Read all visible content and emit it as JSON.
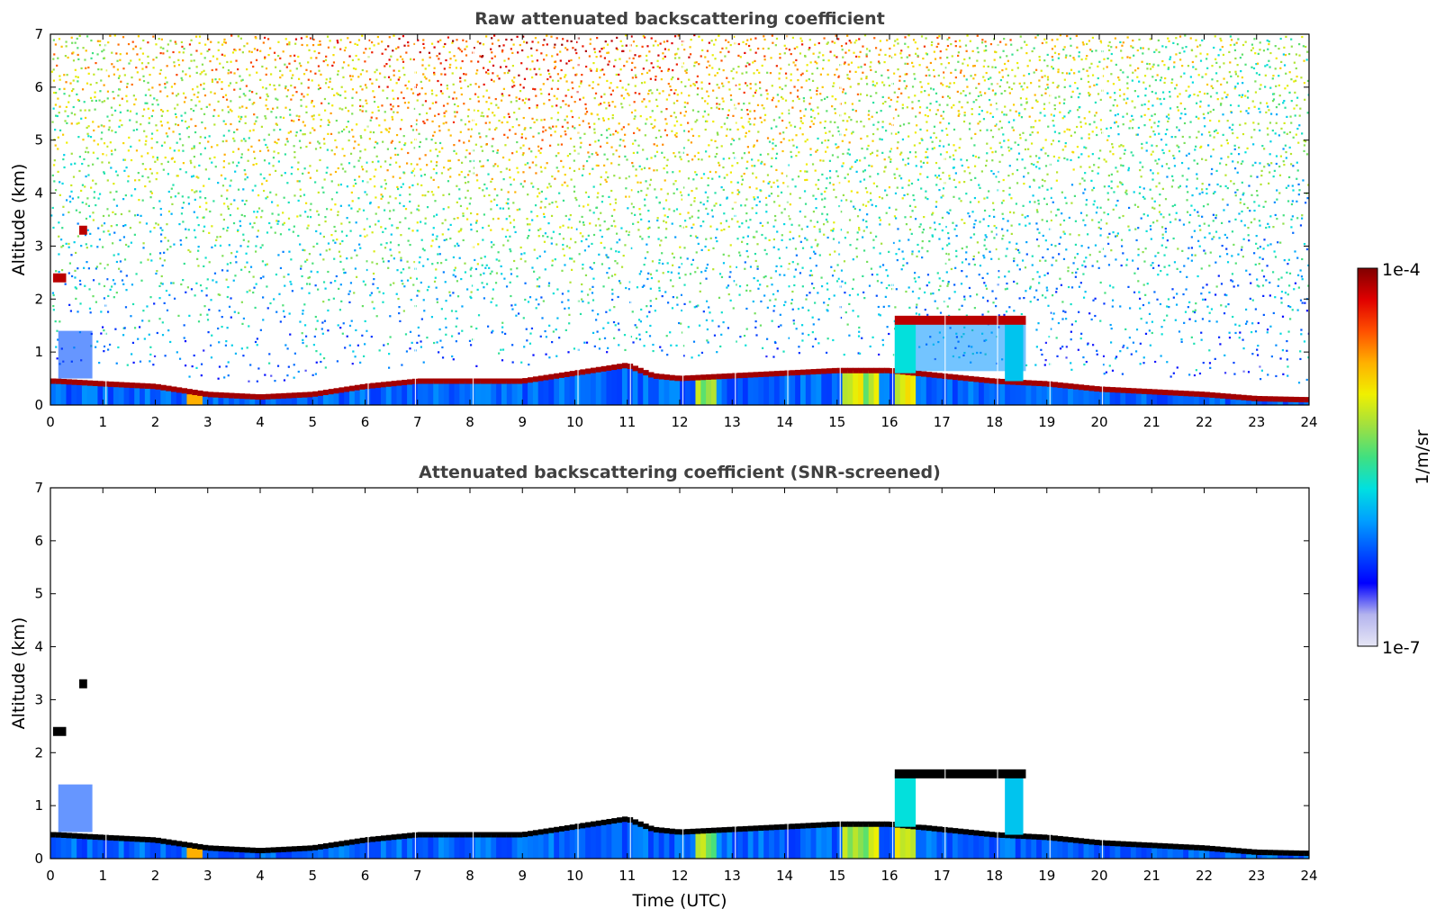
{
  "colors": {
    "colormap": [
      "#e6e6f5",
      "#b4b4ee",
      "#0000ff",
      "#0050ff",
      "#00a0ff",
      "#00e0e0",
      "#40e080",
      "#a0e040",
      "#f0f000",
      "#ffb000",
      "#ff5000",
      "#e00000",
      "#800000"
    ],
    "frame": "#000000",
    "title_text": "#404040",
    "cloud_core": "#000000"
  },
  "chart_data": [
    {
      "type": "heatmap",
      "title": "Raw attenuated backscattering coefficient",
      "xlabel": "",
      "ylabel": "Altitude (km)",
      "xlim": [
        0,
        24
      ],
      "ylim": [
        0,
        7
      ],
      "x_ticks": [
        "0",
        "1",
        "2",
        "3",
        "4",
        "5",
        "6",
        "7",
        "8",
        "9",
        "10",
        "11",
        "12",
        "13",
        "14",
        "15",
        "16",
        "17",
        "18",
        "19",
        "20",
        "21",
        "22",
        "23",
        "24"
      ],
      "y_ticks": [
        "0",
        "1",
        "2",
        "3",
        "4",
        "5",
        "6",
        "7"
      ],
      "boundary_layer_top_km": [
        [
          0.1,
          0.45
        ],
        [
          1,
          0.4
        ],
        [
          2,
          0.35
        ],
        [
          3,
          0.2
        ],
        [
          4,
          0.15
        ],
        [
          5,
          0.2
        ],
        [
          6,
          0.35
        ],
        [
          7,
          0.45
        ],
        [
          8,
          0.45
        ],
        [
          9,
          0.45
        ],
        [
          10,
          0.6
        ],
        [
          11,
          0.75
        ],
        [
          11.5,
          0.55
        ],
        [
          12,
          0.5
        ],
        [
          13,
          0.55
        ],
        [
          14,
          0.6
        ],
        [
          15,
          0.65
        ],
        [
          16,
          0.65
        ],
        [
          18,
          0.45
        ],
        [
          19,
          0.4
        ],
        [
          20,
          0.3
        ],
        [
          21,
          0.25
        ],
        [
          22,
          0.2
        ],
        [
          23,
          0.12
        ],
        [
          23.9,
          0.1
        ]
      ],
      "cloud_layers": [
        {
          "x_start": 16.1,
          "x_end": 18.6,
          "altitude_km": 1.6
        },
        {
          "x_start": 0.05,
          "x_end": 0.3,
          "altitude_km": 2.4
        },
        {
          "x_start": 0.55,
          "x_end": 0.7,
          "altitude_km": 3.3
        }
      ],
      "noise_signal": "increases with altitude; strongest 6-7 km between 4 and 14 UTC",
      "grid": false
    },
    {
      "type": "heatmap",
      "title": "Attenuated backscattering coefficient (SNR-screened)",
      "xlabel": "Time (UTC)",
      "ylabel": "Altitude (km)",
      "xlim": [
        0,
        24
      ],
      "ylim": [
        0,
        7
      ],
      "x_ticks": [
        "0",
        "1",
        "2",
        "3",
        "4",
        "5",
        "6",
        "7",
        "8",
        "9",
        "10",
        "11",
        "12",
        "13",
        "14",
        "15",
        "16",
        "17",
        "18",
        "19",
        "20",
        "21",
        "22",
        "23",
        "24"
      ],
      "y_ticks": [
        "0",
        "1",
        "2",
        "3",
        "4",
        "5",
        "6",
        "7"
      ],
      "boundary_layer_top_km": [
        [
          0.1,
          0.45
        ],
        [
          1,
          0.4
        ],
        [
          2,
          0.35
        ],
        [
          3,
          0.2
        ],
        [
          4,
          0.15
        ],
        [
          5,
          0.2
        ],
        [
          6,
          0.35
        ],
        [
          7,
          0.45
        ],
        [
          8,
          0.45
        ],
        [
          9,
          0.45
        ],
        [
          10,
          0.6
        ],
        [
          11,
          0.75
        ],
        [
          11.5,
          0.55
        ],
        [
          12,
          0.5
        ],
        [
          13,
          0.55
        ],
        [
          14,
          0.6
        ],
        [
          15,
          0.65
        ],
        [
          16,
          0.65
        ],
        [
          18,
          0.45
        ],
        [
          19,
          0.4
        ],
        [
          20,
          0.3
        ],
        [
          21,
          0.25
        ],
        [
          22,
          0.2
        ],
        [
          23,
          0.12
        ],
        [
          23.9,
          0.1
        ]
      ],
      "cloud_layers": [
        {
          "x_start": 16.1,
          "x_end": 18.6,
          "altitude_km": 1.6
        },
        {
          "x_start": 0.05,
          "x_end": 0.3,
          "altitude_km": 2.4
        },
        {
          "x_start": 0.55,
          "x_end": 0.7,
          "altitude_km": 3.3
        }
      ],
      "grid": false
    }
  ],
  "colorbar": {
    "max_label": "1e-4",
    "min_label": "1e-7",
    "unit_label": "1/m/sr",
    "scale": "log"
  }
}
